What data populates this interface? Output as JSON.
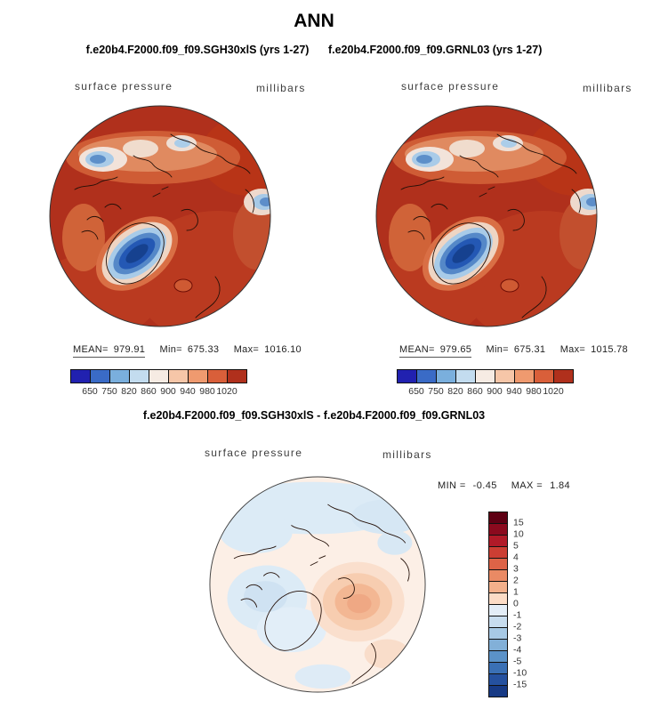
{
  "header": {
    "title": "ANN",
    "case_left": "f.e20b4.F2000.f09_f09.SGH30xlS (yrs 1-27)",
    "case_right": "f.e20b4.F2000.f09_f09.GRNL03 (yrs 1-27)"
  },
  "panels": {
    "left": {
      "field_label": "surface pressure",
      "units_label": "millibars",
      "stats": {
        "mean_label": "MEAN=",
        "mean_value": "979.91",
        "min_label": "Min=",
        "min_value": "675.33",
        "max_label": "Max=",
        "max_value": "1016.10"
      }
    },
    "right": {
      "field_label": "surface pressure",
      "units_label": "millibars",
      "stats": {
        "mean_label": "MEAN=",
        "mean_value": "979.65",
        "min_label": "Min=",
        "min_value": "675.31",
        "max_label": "Max=",
        "max_value": "1015.78"
      }
    }
  },
  "pressure_colorbar": {
    "ticks": [
      "650",
      "750",
      "820",
      "860",
      "900",
      "940",
      "980",
      "1020"
    ],
    "colors": [
      "#2121b0",
      "#3a6bc6",
      "#7aafdd",
      "#c3dcef",
      "#f6ebe3",
      "#f6c6a8",
      "#ef9a6f",
      "#d95f3a",
      "#b0301c"
    ]
  },
  "diff": {
    "title": "f.e20b4.F2000.f09_f09.SGH30xlS - f.e20b4.F2000.f09_f09.GRNL03",
    "field_label": "surface pressure",
    "units_label": "millibars",
    "min_label": "MIN =",
    "min_value": "-0.45",
    "max_label": "MAX =",
    "max_value": "1.84",
    "colorbar": {
      "ticks": [
        "15",
        "10",
        "5",
        "4",
        "3",
        "2",
        "1",
        "0",
        "-1",
        "-2",
        "-3",
        "-4",
        "-5",
        "-10",
        "-15"
      ],
      "colors": [
        "#5e0013",
        "#8b0a1e",
        "#b11a28",
        "#cc3e33",
        "#dd6347",
        "#ea8a64",
        "#f3b08b",
        "#fcdcc6",
        "#e3edf7",
        "#c8ddef",
        "#a7c9e5",
        "#82b0d8",
        "#5b92c8",
        "#3a70b5",
        "#25519f",
        "#173a85"
      ]
    }
  },
  "chart_data": [
    {
      "type": "heatmap",
      "subtype": "polar_stereographic_map",
      "season": "ANN",
      "title": "f.e20b4.F2000.f09_f09.SGH30xlS (yrs 1-27)",
      "variable": "surface pressure",
      "units": "millibars",
      "stats": {
        "mean": 979.91,
        "min": 675.33,
        "max": 1016.1
      },
      "contour_levels": [
        650,
        750,
        820,
        860,
        900,
        940,
        980,
        1020
      ],
      "legend_position": "bottom"
    },
    {
      "type": "heatmap",
      "subtype": "polar_stereographic_map",
      "season": "ANN",
      "title": "f.e20b4.F2000.f09_f09.GRNL03 (yrs 1-27)",
      "variable": "surface pressure",
      "units": "millibars",
      "stats": {
        "mean": 979.65,
        "min": 675.31,
        "max": 1015.78
      },
      "contour_levels": [
        650,
        750,
        820,
        860,
        900,
        940,
        980,
        1020
      ],
      "legend_position": "bottom"
    },
    {
      "type": "heatmap",
      "subtype": "polar_stereographic_map",
      "season": "ANN",
      "title": "f.e20b4.F2000.f09_f09.SGH30xlS - f.e20b4.F2000.f09_f09.GRNL03",
      "variable": "surface pressure difference",
      "units": "millibars",
      "stats": {
        "min": -0.45,
        "max": 1.84
      },
      "contour_levels": [
        15,
        10,
        5,
        4,
        3,
        2,
        1,
        0,
        -1,
        -2,
        -3,
        -4,
        -5,
        -10,
        -15
      ],
      "legend_position": "right"
    }
  ]
}
